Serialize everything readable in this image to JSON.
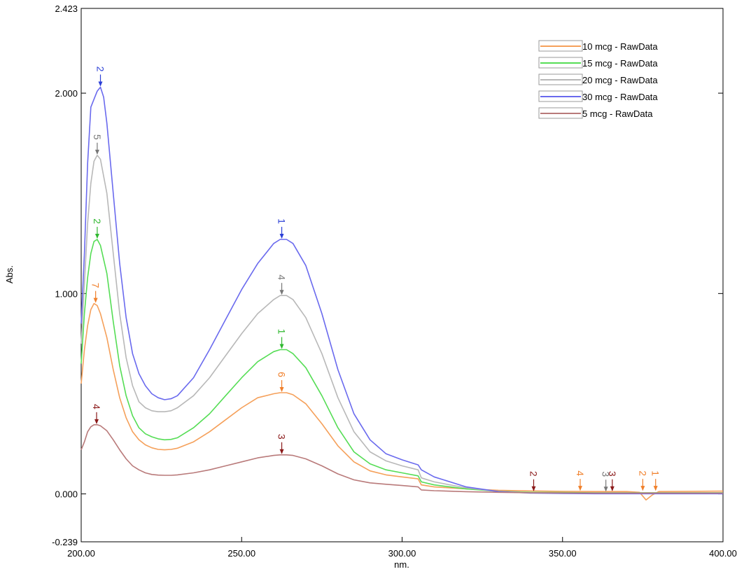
{
  "chart_data": {
    "type": "line",
    "title": "",
    "xlabel": "nm.",
    "ylabel": "Abs.",
    "xlim": [
      200,
      400
    ],
    "ylim": [
      -0.239,
      2.423
    ],
    "x_ticks": [
      "200.00",
      "250.00",
      "300.00",
      "350.00",
      "400.00"
    ],
    "y_ticks": [
      {
        "value": 2.423,
        "label": "2.423"
      },
      {
        "value": 2.0,
        "label": "2.000"
      },
      {
        "value": 1.0,
        "label": "1.000"
      },
      {
        "value": 0.0,
        "label": "0.000"
      },
      {
        "value": -0.239,
        "label": "-0.239"
      }
    ],
    "grid": false,
    "legend_position": "top-right",
    "series": [
      {
        "name": "10 mcg - RawData",
        "color": "#f5a05a",
        "points": [
          [
            200,
            0.55
          ],
          [
            201,
            0.72
          ],
          [
            202,
            0.84
          ],
          [
            203,
            0.92
          ],
          [
            204,
            0.95
          ],
          [
            205,
            0.94
          ],
          [
            206,
            0.9
          ],
          [
            208,
            0.78
          ],
          [
            210,
            0.62
          ],
          [
            212,
            0.48
          ],
          [
            214,
            0.38
          ],
          [
            216,
            0.31
          ],
          [
            218,
            0.27
          ],
          [
            220,
            0.245
          ],
          [
            222,
            0.23
          ],
          [
            224,
            0.222
          ],
          [
            226,
            0.22
          ],
          [
            228,
            0.222
          ],
          [
            230,
            0.228
          ],
          [
            235,
            0.26
          ],
          [
            240,
            0.31
          ],
          [
            245,
            0.37
          ],
          [
            250,
            0.43
          ],
          [
            255,
            0.48
          ],
          [
            260,
            0.5
          ],
          [
            262,
            0.505
          ],
          [
            264,
            0.505
          ],
          [
            266,
            0.495
          ],
          [
            270,
            0.45
          ],
          [
            275,
            0.35
          ],
          [
            280,
            0.24
          ],
          [
            285,
            0.16
          ],
          [
            290,
            0.115
          ],
          [
            295,
            0.095
          ],
          [
            300,
            0.085
          ],
          [
            305,
            0.075
          ],
          [
            306,
            0.045
          ],
          [
            310,
            0.035
          ],
          [
            320,
            0.025
          ],
          [
            330,
            0.018
          ],
          [
            340,
            0.015
          ],
          [
            350,
            0.013
          ],
          [
            360,
            0.012
          ],
          [
            370,
            0.012
          ],
          [
            374,
            0.008
          ],
          [
            376,
            -0.03
          ],
          [
            378,
            -0.005
          ],
          [
            380,
            0.012
          ],
          [
            390,
            0.013
          ],
          [
            400,
            0.014
          ]
        ]
      },
      {
        "name": "15 mcg - RawData",
        "color": "#55dd55",
        "points": [
          [
            200,
            0.65
          ],
          [
            201,
            0.9
          ],
          [
            202,
            1.08
          ],
          [
            203,
            1.2
          ],
          [
            204,
            1.26
          ],
          [
            205,
            1.27
          ],
          [
            206,
            1.24
          ],
          [
            208,
            1.1
          ],
          [
            210,
            0.86
          ],
          [
            212,
            0.64
          ],
          [
            214,
            0.49
          ],
          [
            216,
            0.39
          ],
          [
            218,
            0.33
          ],
          [
            220,
            0.3
          ],
          [
            222,
            0.285
          ],
          [
            224,
            0.275
          ],
          [
            226,
            0.27
          ],
          [
            228,
            0.272
          ],
          [
            230,
            0.28
          ],
          [
            235,
            0.33
          ],
          [
            240,
            0.4
          ],
          [
            245,
            0.49
          ],
          [
            250,
            0.58
          ],
          [
            255,
            0.66
          ],
          [
            260,
            0.71
          ],
          [
            262,
            0.72
          ],
          [
            264,
            0.72
          ],
          [
            266,
            0.7
          ],
          [
            270,
            0.63
          ],
          [
            275,
            0.49
          ],
          [
            280,
            0.33
          ],
          [
            285,
            0.21
          ],
          [
            290,
            0.15
          ],
          [
            295,
            0.12
          ],
          [
            300,
            0.105
          ],
          [
            305,
            0.09
          ],
          [
            306,
            0.06
          ],
          [
            310,
            0.045
          ],
          [
            320,
            0.025
          ],
          [
            330,
            0.013
          ],
          [
            340,
            0.008
          ],
          [
            350,
            0.007
          ],
          [
            360,
            0.006
          ],
          [
            370,
            0.006
          ],
          [
            380,
            0.006
          ],
          [
            390,
            0.006
          ],
          [
            400,
            0.006
          ]
        ]
      },
      {
        "name": "20 mcg - RawData",
        "color": "#b8b8b8",
        "points": [
          [
            200,
            0.75
          ],
          [
            201,
            1.05
          ],
          [
            202,
            1.35
          ],
          [
            203,
            1.55
          ],
          [
            204,
            1.66
          ],
          [
            205,
            1.69
          ],
          [
            206,
            1.67
          ],
          [
            208,
            1.5
          ],
          [
            210,
            1.2
          ],
          [
            212,
            0.9
          ],
          [
            214,
            0.68
          ],
          [
            216,
            0.54
          ],
          [
            218,
            0.46
          ],
          [
            220,
            0.43
          ],
          [
            222,
            0.415
          ],
          [
            224,
            0.41
          ],
          [
            226,
            0.41
          ],
          [
            228,
            0.415
          ],
          [
            230,
            0.43
          ],
          [
            235,
            0.49
          ],
          [
            240,
            0.58
          ],
          [
            245,
            0.69
          ],
          [
            250,
            0.8
          ],
          [
            255,
            0.9
          ],
          [
            260,
            0.97
          ],
          [
            262,
            0.99
          ],
          [
            264,
            0.99
          ],
          [
            266,
            0.97
          ],
          [
            270,
            0.88
          ],
          [
            275,
            0.7
          ],
          [
            280,
            0.48
          ],
          [
            285,
            0.31
          ],
          [
            290,
            0.21
          ],
          [
            295,
            0.165
          ],
          [
            300,
            0.14
          ],
          [
            305,
            0.12
          ],
          [
            306,
            0.08
          ],
          [
            310,
            0.06
          ],
          [
            320,
            0.03
          ],
          [
            330,
            0.012
          ],
          [
            340,
            0.006
          ],
          [
            350,
            0.005
          ],
          [
            360,
            0.005
          ],
          [
            370,
            0.005
          ],
          [
            380,
            0.005
          ],
          [
            390,
            0.005
          ],
          [
            400,
            0.005
          ]
        ]
      },
      {
        "name": "30 mcg - RawData",
        "color": "#6a6aee",
        "points": [
          [
            200,
            0.85
          ],
          [
            201,
            1.2
          ],
          [
            202,
            1.65
          ],
          [
            203,
            1.93
          ],
          [
            204,
            1.97
          ],
          [
            205,
            2.01
          ],
          [
            206,
            2.03
          ],
          [
            207,
            1.98
          ],
          [
            208,
            1.85
          ],
          [
            210,
            1.5
          ],
          [
            212,
            1.15
          ],
          [
            214,
            0.88
          ],
          [
            216,
            0.7
          ],
          [
            218,
            0.6
          ],
          [
            220,
            0.54
          ],
          [
            222,
            0.5
          ],
          [
            224,
            0.48
          ],
          [
            226,
            0.47
          ],
          [
            228,
            0.475
          ],
          [
            230,
            0.49
          ],
          [
            235,
            0.58
          ],
          [
            240,
            0.72
          ],
          [
            245,
            0.87
          ],
          [
            250,
            1.02
          ],
          [
            255,
            1.15
          ],
          [
            260,
            1.25
          ],
          [
            262,
            1.27
          ],
          [
            264,
            1.27
          ],
          [
            266,
            1.25
          ],
          [
            270,
            1.14
          ],
          [
            275,
            0.9
          ],
          [
            280,
            0.62
          ],
          [
            285,
            0.4
          ],
          [
            290,
            0.27
          ],
          [
            295,
            0.2
          ],
          [
            300,
            0.17
          ],
          [
            305,
            0.145
          ],
          [
            306,
            0.12
          ],
          [
            310,
            0.085
          ],
          [
            320,
            0.035
          ],
          [
            330,
            0.012
          ],
          [
            340,
            0.004
          ],
          [
            350,
            0.002
          ],
          [
            360,
            0.001
          ],
          [
            370,
            0.001
          ],
          [
            380,
            0.001
          ],
          [
            390,
            0.001
          ],
          [
            400,
            0.001
          ]
        ]
      },
      {
        "name": "5 mcg - RawData",
        "color": "#b97a7a",
        "points": [
          [
            200,
            0.22
          ],
          [
            201,
            0.26
          ],
          [
            202,
            0.31
          ],
          [
            203,
            0.335
          ],
          [
            204,
            0.345
          ],
          [
            205,
            0.345
          ],
          [
            206,
            0.34
          ],
          [
            208,
            0.315
          ],
          [
            210,
            0.27
          ],
          [
            212,
            0.22
          ],
          [
            214,
            0.175
          ],
          [
            216,
            0.14
          ],
          [
            218,
            0.12
          ],
          [
            220,
            0.105
          ],
          [
            222,
            0.097
          ],
          [
            224,
            0.094
          ],
          [
            226,
            0.093
          ],
          [
            228,
            0.093
          ],
          [
            230,
            0.095
          ],
          [
            235,
            0.105
          ],
          [
            240,
            0.12
          ],
          [
            245,
            0.14
          ],
          [
            250,
            0.16
          ],
          [
            255,
            0.18
          ],
          [
            260,
            0.192
          ],
          [
            262,
            0.195
          ],
          [
            264,
            0.195
          ],
          [
            266,
            0.192
          ],
          [
            270,
            0.175
          ],
          [
            275,
            0.14
          ],
          [
            280,
            0.1
          ],
          [
            285,
            0.07
          ],
          [
            290,
            0.055
          ],
          [
            295,
            0.048
          ],
          [
            300,
            0.042
          ],
          [
            305,
            0.035
          ],
          [
            306,
            0.02
          ],
          [
            310,
            0.016
          ],
          [
            320,
            0.011
          ],
          [
            330,
            0.008
          ],
          [
            340,
            0.006
          ],
          [
            350,
            0.005
          ],
          [
            360,
            0.004
          ],
          [
            370,
            0.004
          ],
          [
            380,
            0.004
          ],
          [
            390,
            0.004
          ],
          [
            400,
            0.004
          ]
        ]
      }
    ],
    "peak_markers": [
      {
        "label": "2",
        "x": 206.0,
        "y": 2.03,
        "color": "#2b3fd6"
      },
      {
        "label": "5",
        "x": 205.0,
        "y": 1.69,
        "color": "#777777"
      },
      {
        "label": "2",
        "x": 205.0,
        "y": 1.27,
        "color": "#2fb82f"
      },
      {
        "label": "7",
        "x": 204.5,
        "y": 0.95,
        "color": "#f07f2a"
      },
      {
        "label": "4",
        "x": 204.8,
        "y": 0.345,
        "color": "#8b1a1a"
      },
      {
        "label": "1",
        "x": 262.5,
        "y": 1.27,
        "color": "#2b3fd6"
      },
      {
        "label": "4",
        "x": 262.5,
        "y": 0.99,
        "color": "#777777"
      },
      {
        "label": "1",
        "x": 262.5,
        "y": 0.72,
        "color": "#2fb82f"
      },
      {
        "label": "6",
        "x": 262.5,
        "y": 0.505,
        "color": "#f07f2a"
      },
      {
        "label": "3",
        "x": 262.5,
        "y": 0.195,
        "color": "#8b1a1a"
      },
      {
        "label": "2",
        "x": 341.0,
        "y": 0.01,
        "color": "#8b1a1a"
      },
      {
        "label": "4",
        "x": 355.5,
        "y": 0.012,
        "color": "#f07f2a"
      },
      {
        "label": "3",
        "x": 363.5,
        "y": 0.008,
        "color": "#777777"
      },
      {
        "label": "3",
        "x": 365.5,
        "y": 0.01,
        "color": "#8b1a1a"
      },
      {
        "label": "2",
        "x": 375.0,
        "y": 0.012,
        "color": "#f07f2a"
      },
      {
        "label": "1",
        "x": 379.0,
        "y": 0.012,
        "color": "#f07f2a"
      }
    ]
  }
}
